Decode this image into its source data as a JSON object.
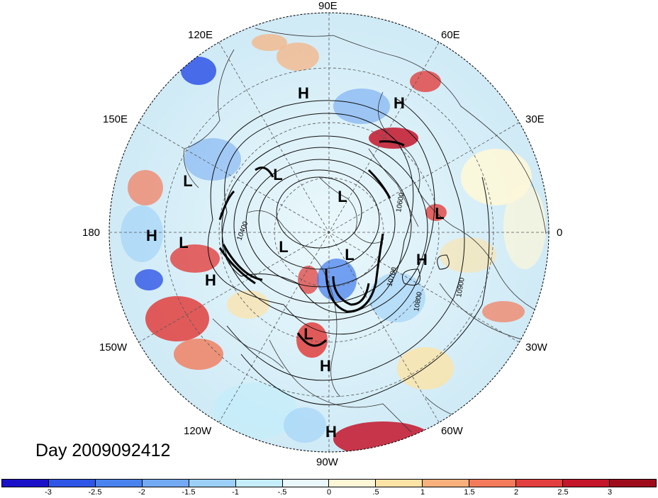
{
  "title": "Day 2009092412",
  "longitude_labels": [
    "90E",
    "60E",
    "30E",
    "0",
    "30W",
    "60W",
    "90W",
    "120W",
    "150W",
    "180",
    "150E",
    "120E"
  ],
  "pressure_systems": [
    {
      "label": "H"
    },
    {
      "label": "H"
    },
    {
      "label": "L"
    },
    {
      "label": "L"
    },
    {
      "label": "L"
    },
    {
      "label": "H"
    },
    {
      "label": "L"
    },
    {
      "label": "L"
    },
    {
      "label": "L"
    },
    {
      "label": "H"
    },
    {
      "label": "L"
    },
    {
      "label": "H"
    },
    {
      "label": "L"
    },
    {
      "label": "H"
    },
    {
      "label": "H"
    }
  ],
  "contour_labels": [
    "10400",
    "10600",
    "10700",
    "10800",
    "10900"
  ],
  "colorbar": {
    "ticks": [
      "-3",
      "-2.5",
      "-2",
      "-1.5",
      "-1",
      "-.5",
      "0",
      ".5",
      "1",
      "1.5",
      "2",
      "2.5",
      "3"
    ],
    "colors": [
      "#1a10c8",
      "#2f55e6",
      "#4a82ee",
      "#72a9f2",
      "#9cd0f8",
      "#c6eefa",
      "#eaf8fb",
      "#fdf7d8",
      "#fde3a6",
      "#f8b07c",
      "#f37a5a",
      "#e2403e",
      "#c4152b",
      "#9e0c1c"
    ]
  }
}
